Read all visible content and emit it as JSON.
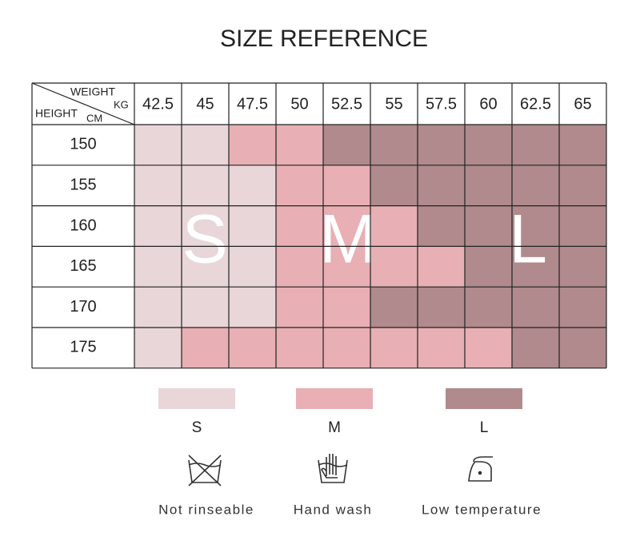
{
  "header": {
    "title": "SIZE REFERENCE"
  },
  "table": {
    "corner": {
      "weight": "WEIGHT",
      "kg": "KG",
      "height": "HEIGHT",
      "cm": "CM"
    },
    "weights": [
      42.5,
      45,
      47.5,
      50,
      52.5,
      55,
      57.5,
      60,
      62.5,
      65
    ],
    "heights": [
      150,
      155,
      160,
      165,
      170,
      175
    ],
    "rows": [
      [
        "S",
        "S",
        "M",
        "M",
        "L",
        "L",
        "L",
        "L",
        "L",
        "L"
      ],
      [
        "S",
        "S",
        "S",
        "M",
        "M",
        "L",
        "L",
        "L",
        "L",
        "L"
      ],
      [
        "S",
        "S",
        "S",
        "M",
        "M",
        "M",
        "L",
        "L",
        "L",
        "L"
      ],
      [
        "S",
        "S",
        "S",
        "M",
        "M",
        "M",
        "M",
        "L",
        "L",
        "L"
      ],
      [
        "S",
        "S",
        "S",
        "M",
        "M",
        "L",
        "L",
        "L",
        "L",
        "L"
      ],
      [
        "S",
        "M",
        "M",
        "M",
        "M",
        "M",
        "M",
        "M",
        "L",
        "L"
      ]
    ],
    "overlay": [
      "S",
      "M",
      "L"
    ]
  },
  "legend": [
    {
      "name": "S",
      "color": "#e8d6d8"
    },
    {
      "name": "M",
      "color": "#e8b0b4"
    },
    {
      "name": "L",
      "color": "#b08a8c"
    }
  ],
  "care": [
    {
      "label": "Not rinseable"
    },
    {
      "label": "Hand wash"
    },
    {
      "label": "Low temperature"
    }
  ]
}
